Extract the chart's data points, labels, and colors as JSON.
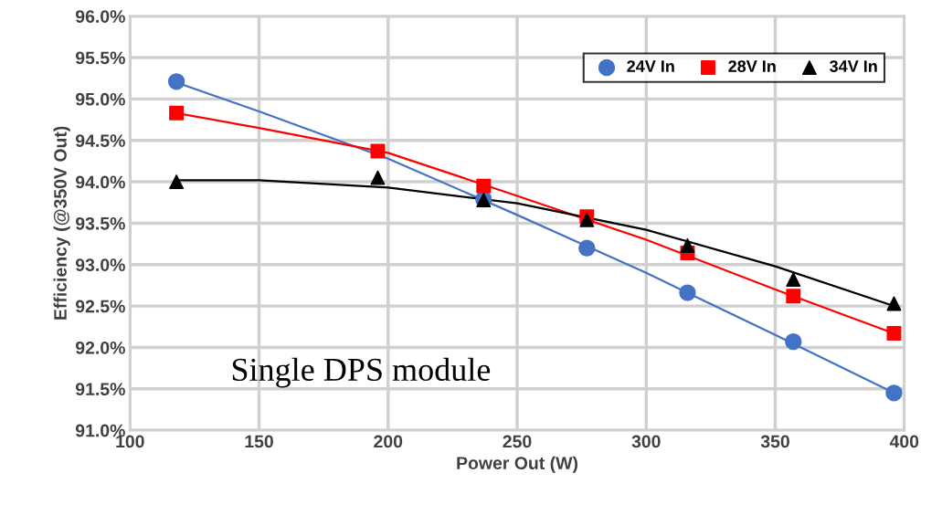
{
  "chart_data": {
    "type": "scatter",
    "xlabel": "Power Out (W)",
    "ylabel": "Efficiency (@350V Out)",
    "xlim": [
      100,
      400
    ],
    "xticks": [
      100,
      150,
      200,
      250,
      300,
      350,
      400
    ],
    "ylim": [
      91.0,
      96.0
    ],
    "yticks": [
      {
        "value": 91.0,
        "label": "91.0%"
      },
      {
        "value": 91.5,
        "label": "91.5%"
      },
      {
        "value": 92.0,
        "label": "92.0%"
      },
      {
        "value": 92.5,
        "label": "92.5%"
      },
      {
        "value": 93.0,
        "label": "93.0%"
      },
      {
        "value": 93.5,
        "label": "93.5%"
      },
      {
        "value": 94.0,
        "label": "94.0%"
      },
      {
        "value": 94.5,
        "label": "94.5%"
      },
      {
        "value": 95.0,
        "label": "95.0%"
      },
      {
        "value": 95.5,
        "label": "95.5%"
      },
      {
        "value": 96.0,
        "label": "96.0%"
      }
    ],
    "grid": true,
    "legend": "top right",
    "annotations": [
      "Single DPS module"
    ],
    "x": [
      118,
      196,
      237,
      277,
      316,
      357,
      396
    ],
    "series": [
      {
        "type": "line",
        "color": "#4472c4",
        "marker": "none",
        "x": [
          118,
          150,
          200,
          250,
          300,
          350,
          396
        ],
        "values": [
          95.2,
          94.85,
          94.28,
          93.6,
          92.9,
          92.15,
          91.45
        ]
      },
      {
        "type": "line",
        "color": "#ff0000",
        "marker": "none",
        "x": [
          118,
          150,
          200,
          250,
          300,
          350,
          396
        ],
        "values": [
          94.83,
          94.65,
          94.35,
          93.83,
          93.3,
          92.7,
          92.17
        ]
      },
      {
        "type": "line",
        "color": "#000000",
        "marker": "none",
        "x": [
          118,
          150,
          200,
          250,
          300,
          350,
          396
        ],
        "values": [
          94.02,
          94.02,
          93.93,
          93.74,
          93.42,
          92.98,
          92.5
        ]
      },
      {
        "name": "24V In",
        "color": "#4472c4",
        "marker": "circle",
        "values": [
          95.21,
          null,
          93.79,
          93.2,
          92.66,
          92.07,
          91.45
        ]
      },
      {
        "name": "28V In",
        "color": "#ff0000",
        "marker": "square",
        "values": [
          94.83,
          94.37,
          93.95,
          93.58,
          93.14,
          92.62,
          92.17
        ]
      },
      {
        "name": "34V In",
        "color": "#000000",
        "marker": "triangle",
        "values": [
          94.0,
          94.05,
          93.78,
          93.54,
          93.23,
          92.82,
          92.53
        ]
      }
    ]
  }
}
